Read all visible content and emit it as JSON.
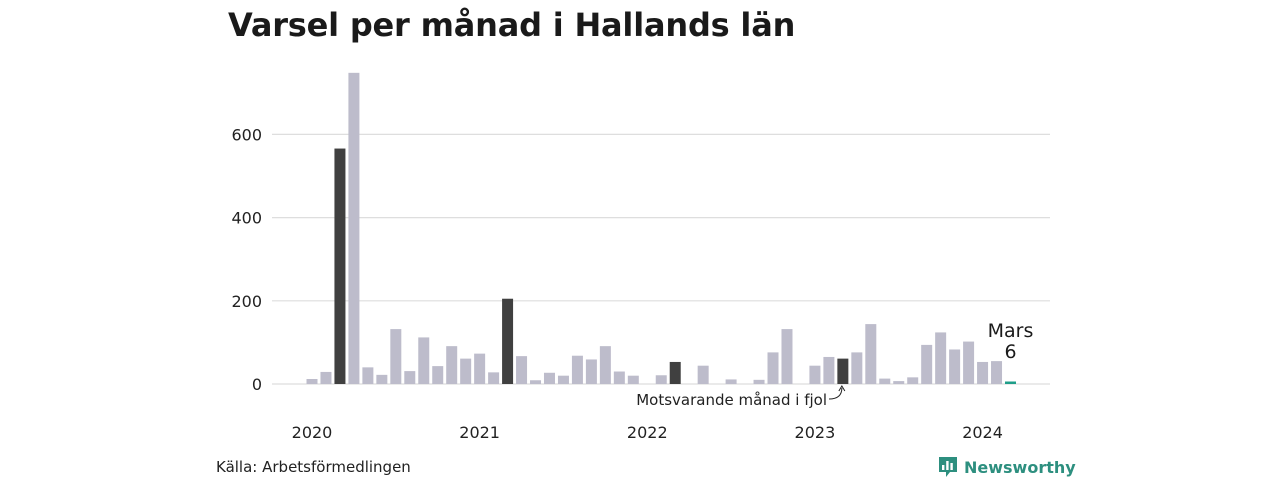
{
  "title": "Varsel per månad i Hallands län",
  "source": "Källa: Arbetsförmedlingen",
  "brand": "Newsworthy",
  "colors": {
    "normal": "#bdbccb",
    "same_month": "#404040",
    "current": "#1f9e89",
    "grid": "#dedede"
  },
  "chart_data": {
    "type": "bar",
    "ylim": [
      0,
      750
    ],
    "yticks": [
      0,
      200,
      400,
      600
    ],
    "year_labels": [
      "2020",
      "2021",
      "2022",
      "2023",
      "2024"
    ],
    "months": [
      "2020-01",
      "2020-02",
      "2020-03",
      "2020-04",
      "2020-05",
      "2020-06",
      "2020-07",
      "2020-08",
      "2020-09",
      "2020-10",
      "2020-11",
      "2020-12",
      "2021-01",
      "2021-02",
      "2021-03",
      "2021-04",
      "2021-05",
      "2021-06",
      "2021-07",
      "2021-08",
      "2021-09",
      "2021-10",
      "2021-11",
      "2021-12",
      "2022-01",
      "2022-02",
      "2022-03",
      "2022-04",
      "2022-05",
      "2022-06",
      "2022-07",
      "2022-08",
      "2022-09",
      "2022-10",
      "2022-11",
      "2022-12",
      "2023-01",
      "2023-02",
      "2023-03",
      "2023-04",
      "2023-05",
      "2023-06",
      "2023-07",
      "2023-08",
      "2023-09",
      "2023-10",
      "2023-11",
      "2023-12",
      "2024-01",
      "2024-02",
      "2024-03"
    ],
    "values": [
      12,
      29,
      566,
      748,
      40,
      22,
      132,
      31,
      112,
      43,
      91,
      61,
      73,
      28,
      205,
      67,
      9,
      27,
      20,
      68,
      59,
      91,
      30,
      20,
      0,
      21,
      53,
      0,
      44,
      0,
      11,
      0,
      10,
      76,
      132,
      0,
      44,
      65,
      61,
      76,
      144,
      13,
      7,
      16,
      94,
      124,
      83,
      102,
      53,
      55,
      6
    ],
    "highlight_same_month_index": [
      2,
      14,
      26,
      38
    ],
    "current_index": 50,
    "current_label": "Mars",
    "current_value_label": "6",
    "annotation": "Motsvarande månad i fjol"
  }
}
